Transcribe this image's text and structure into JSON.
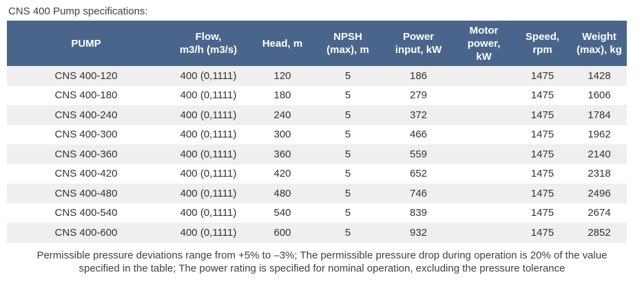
{
  "title": "CNS 400 Pump specifications:",
  "colors": {
    "header_bg": "#4a658c",
    "header_text": "#ffffff",
    "stripe": "#efefef",
    "cell_text": "#333333",
    "title_text": "#404040"
  },
  "table": {
    "columns": [
      {
        "label": "PUMP"
      },
      {
        "label": "Flow,\nm3/h (m3/s)"
      },
      {
        "label": "Head, m"
      },
      {
        "label": "NPSH\n(max), m"
      },
      {
        "label": "Power\ninput, kW"
      },
      {
        "label": "Motor\npower,\nkW"
      },
      {
        "label": "Speed,\nrpm"
      },
      {
        "label": "Weight\n(max), kg"
      }
    ],
    "rows": [
      {
        "cells": [
          "CNS 400-120",
          "400 (0,1111)",
          "120",
          "5",
          "186",
          "",
          "1475",
          "1428"
        ]
      },
      {
        "cells": [
          "CNS 400-180",
          "400 (0,1111)",
          "180",
          "5",
          "279",
          "",
          "1475",
          "1606"
        ]
      },
      {
        "cells": [
          "CNS 400-240",
          "400 (0,1111)",
          "240",
          "5",
          "372",
          "",
          "1475",
          "1784"
        ]
      },
      {
        "cells": [
          "CNS 400-300",
          "400 (0,1111)",
          "300",
          "5",
          "466",
          "",
          "1475",
          "1962"
        ]
      },
      {
        "cells": [
          "CNS 400-360",
          "400 (0,1111)",
          "360",
          "5",
          "559",
          "",
          "1475",
          "2140"
        ]
      },
      {
        "cells": [
          "CNS 400-420",
          "400 (0,1111)",
          "420",
          "5",
          "652",
          "",
          "1475",
          "2318"
        ]
      },
      {
        "cells": [
          "CNS 400-480",
          "400 (0,1111)",
          "480",
          "5",
          "746",
          "",
          "1475",
          "2496"
        ]
      },
      {
        "cells": [
          "CNS 400-540",
          "400 (0,1111)",
          "540",
          "5",
          "839",
          "",
          "1475",
          "2674"
        ]
      },
      {
        "cells": [
          "CNS 400-600",
          "400 (0,1111)",
          "600",
          "5",
          "932",
          "",
          "1475",
          "2852"
        ]
      }
    ]
  },
  "footnote": "Permissible pressure deviations range from +5% to –3%; The permissible pressure drop during operation is 20% of the value specified in the table; The power rating is specified for nominal operation, excluding the pressure tolerance"
}
